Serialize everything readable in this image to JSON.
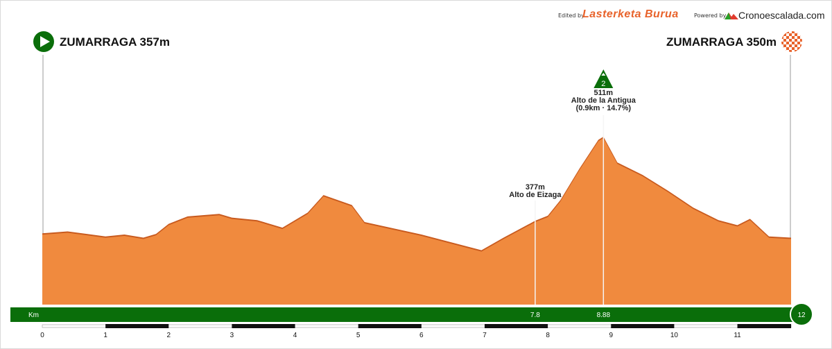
{
  "header": {
    "edited_by": "Edited by",
    "brand": "Lasterketa Burua",
    "powered_by": "Powered by",
    "powered_brand": "Cronoescalada.com"
  },
  "start": {
    "label": "ZUMARRAGA 357m"
  },
  "finish": {
    "label": "ZUMARRAGA 350m"
  },
  "colors": {
    "profile_fill": "#f08a3e",
    "profile_edge": "#c85a1e",
    "bar_green": "#0a6e0a",
    "climb_green": "#0a6e0a"
  },
  "chart_data": {
    "type": "area",
    "xlabel": "Km",
    "xlim": [
      0,
      12
    ],
    "x_ticks": [
      "0",
      "1",
      "2",
      "3",
      "4",
      "5",
      "6",
      "7",
      "8",
      "9",
      "10",
      "11"
    ],
    "distance_end": "12",
    "elevation_points": [
      [
        0,
        357
      ],
      [
        0.4,
        360
      ],
      [
        1.0,
        352
      ],
      [
        1.3,
        355
      ],
      [
        1.6,
        350
      ],
      [
        1.8,
        356
      ],
      [
        2.0,
        372
      ],
      [
        2.3,
        384
      ],
      [
        2.8,
        388
      ],
      [
        3.0,
        382
      ],
      [
        3.4,
        378
      ],
      [
        3.8,
        366
      ],
      [
        4.2,
        390
      ],
      [
        4.45,
        418
      ],
      [
        4.9,
        402
      ],
      [
        5.1,
        375
      ],
      [
        6.0,
        355
      ],
      [
        6.95,
        330
      ],
      [
        7.3,
        350
      ],
      [
        7.8,
        377
      ],
      [
        8.0,
        385
      ],
      [
        8.2,
        410
      ],
      [
        8.5,
        460
      ],
      [
        8.8,
        506
      ],
      [
        8.88,
        511
      ],
      [
        9.1,
        470
      ],
      [
        9.5,
        450
      ],
      [
        9.9,
        425
      ],
      [
        10.3,
        398
      ],
      [
        10.7,
        378
      ],
      [
        11.0,
        370
      ],
      [
        11.2,
        380
      ],
      [
        11.5,
        352
      ],
      [
        11.85,
        350
      ]
    ],
    "climbs": [
      {
        "km": 7.8,
        "km_label": "7.8",
        "name": "Alto de Eizaga",
        "altitude": "377m"
      },
      {
        "km": 8.88,
        "km_label": "8.88",
        "name": "Alto de la Antigua",
        "altitude": "511m",
        "stats": "(0.9km · 14.7%)",
        "category": "2"
      }
    ]
  }
}
